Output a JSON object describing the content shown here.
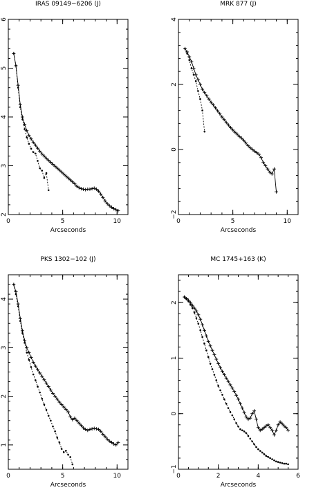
{
  "chart_data": [
    {
      "type": "line",
      "title": "IRAS 09149−6206 (J)",
      "xlabel": "Arcseconds",
      "ylabel": "",
      "xlim": [
        0,
        11
      ],
      "ylim": [
        2,
        6
      ],
      "xticks": [
        "0",
        "5",
        "10"
      ],
      "yticks": [
        "2",
        "3",
        "4",
        "5",
        "6"
      ],
      "series": [
        {
          "style": "solid-plus",
          "x": [
            0.5,
            0.7,
            0.9,
            1.1,
            1.3,
            1.5,
            1.7,
            1.9,
            2.1,
            2.3,
            2.5,
            2.7,
            2.9,
            3.1,
            3.3,
            3.5,
            3.7,
            3.9,
            4.1,
            4.3,
            4.5,
            4.7,
            4.9,
            5.1,
            5.3,
            5.5,
            5.7,
            5.9,
            6.1,
            6.3,
            6.5,
            6.7,
            6.9,
            7.1,
            7.3,
            7.5,
            7.7,
            7.9,
            8.1,
            8.3,
            8.5,
            8.7,
            8.9,
            9.1,
            9.3,
            9.5,
            9.7,
            9.9,
            10.1
          ],
          "y": [
            5.3,
            5.05,
            4.65,
            4.25,
            4.0,
            3.85,
            3.72,
            3.62,
            3.55,
            3.48,
            3.42,
            3.36,
            3.3,
            3.24,
            3.2,
            3.15,
            3.11,
            3.07,
            3.03,
            2.99,
            2.95,
            2.91,
            2.87,
            2.83,
            2.79,
            2.75,
            2.71,
            2.67,
            2.63,
            2.58,
            2.55,
            2.53,
            2.52,
            2.51,
            2.52,
            2.52,
            2.53,
            2.54,
            2.52,
            2.48,
            2.42,
            2.35,
            2.28,
            2.22,
            2.18,
            2.15,
            2.12,
            2.1,
            2.08
          ]
        },
        {
          "style": "dashed-dot",
          "x": [
            0.5,
            0.7,
            0.9,
            1.1,
            1.3,
            1.5,
            1.7,
            1.9,
            2.1,
            2.3,
            2.5,
            2.7,
            2.9,
            3.1,
            3.3,
            3.5,
            3.7
          ],
          "y": [
            5.3,
            5.05,
            4.6,
            4.2,
            3.95,
            3.75,
            3.58,
            3.45,
            3.35,
            3.28,
            3.25,
            3.1,
            2.95,
            2.9,
            2.75,
            2.85,
            2.5
          ]
        }
      ]
    },
    {
      "type": "line",
      "title": "MRK 877 (J)",
      "xlabel": "Arcseconds",
      "ylabel": "",
      "xlim": [
        0,
        11
      ],
      "ylim": [
        -2,
        4
      ],
      "xticks": [
        "0",
        "5",
        "10"
      ],
      "yticks": [
        "−2",
        "0",
        "2",
        "4"
      ],
      "series": [
        {
          "style": "solid-plus",
          "x": [
            0.6,
            0.8,
            1.0,
            1.2,
            1.4,
            1.6,
            1.8,
            2.0,
            2.2,
            2.4,
            2.6,
            2.8,
            3.0,
            3.2,
            3.4,
            3.6,
            3.8,
            4.0,
            4.2,
            4.4,
            4.6,
            4.8,
            5.0,
            5.2,
            5.4,
            5.6,
            5.8,
            6.0,
            6.2,
            6.4,
            6.6,
            6.8,
            7.0,
            7.2,
            7.4,
            7.6,
            7.8,
            8.0,
            8.2,
            8.4,
            8.6,
            8.8,
            9.0
          ],
          "y": [
            3.1,
            3.0,
            2.85,
            2.7,
            2.5,
            2.3,
            2.15,
            2.0,
            1.85,
            1.75,
            1.65,
            1.55,
            1.45,
            1.37,
            1.28,
            1.19,
            1.1,
            1.0,
            0.92,
            0.83,
            0.75,
            0.67,
            0.6,
            0.53,
            0.47,
            0.4,
            0.35,
            0.28,
            0.2,
            0.12,
            0.05,
            0.0,
            -0.05,
            -0.1,
            -0.15,
            -0.25,
            -0.4,
            -0.5,
            -0.6,
            -0.7,
            -0.75,
            -0.6,
            -1.3
          ]
        },
        {
          "style": "dashed-dot",
          "x": [
            0.6,
            0.8,
            1.0,
            1.2,
            1.4,
            1.6,
            1.8,
            2.0,
            2.2,
            2.4
          ],
          "y": [
            3.1,
            2.95,
            2.75,
            2.5,
            2.3,
            2.1,
            1.8,
            1.55,
            1.2,
            0.55
          ]
        }
      ]
    },
    {
      "type": "line",
      "title": "PKS 1302−102 (J)",
      "xlabel": "Arcseconds",
      "ylabel": "",
      "xlim": [
        0,
        11
      ],
      "ylim": [
        0.5,
        4.5
      ],
      "xticks": [
        "0",
        "5",
        "10"
      ],
      "yticks": [
        "1",
        "2",
        "3",
        "4"
      ],
      "series": [
        {
          "style": "solid-plus",
          "x": [
            0.5,
            0.7,
            0.9,
            1.1,
            1.3,
            1.5,
            1.7,
            1.9,
            2.1,
            2.3,
            2.5,
            2.7,
            2.9,
            3.1,
            3.3,
            3.5,
            3.7,
            3.9,
            4.1,
            4.3,
            4.5,
            4.7,
            4.9,
            5.1,
            5.3,
            5.5,
            5.7,
            5.9,
            6.1,
            6.3,
            6.5,
            6.7,
            6.9,
            7.1,
            7.3,
            7.5,
            7.7,
            7.9,
            8.1,
            8.3,
            8.5,
            8.7,
            8.9,
            9.1,
            9.3,
            9.5,
            9.7,
            9.9,
            10.1
          ],
          "y": [
            4.3,
            4.15,
            3.9,
            3.6,
            3.35,
            3.15,
            3.0,
            2.9,
            2.8,
            2.7,
            2.62,
            2.55,
            2.48,
            2.41,
            2.34,
            2.27,
            2.2,
            2.13,
            2.06,
            2.0,
            1.94,
            1.88,
            1.83,
            1.78,
            1.73,
            1.68,
            1.58,
            1.52,
            1.55,
            1.5,
            1.45,
            1.4,
            1.35,
            1.32,
            1.3,
            1.32,
            1.33,
            1.34,
            1.33,
            1.32,
            1.28,
            1.22,
            1.17,
            1.12,
            1.08,
            1.05,
            1.02,
            1.0,
            1.05
          ]
        },
        {
          "style": "dashed-dot",
          "x": [
            0.5,
            0.7,
            0.9,
            1.1,
            1.3,
            1.5,
            1.7,
            1.9,
            2.1,
            2.3,
            2.5,
            2.7,
            2.9,
            3.1,
            3.3,
            3.5,
            3.7,
            3.9,
            4.1,
            4.3,
            4.5,
            4.7,
            4.9,
            5.1,
            5.3,
            5.5,
            5.7,
            5.9
          ],
          "y": [
            4.3,
            4.1,
            3.85,
            3.55,
            3.3,
            3.1,
            2.9,
            2.75,
            2.6,
            2.45,
            2.33,
            2.2,
            2.08,
            1.95,
            1.83,
            1.72,
            1.6,
            1.5,
            1.38,
            1.28,
            1.15,
            1.05,
            0.92,
            0.85,
            0.88,
            0.8,
            0.75,
            0.6
          ]
        }
      ]
    },
    {
      "type": "line",
      "title": "MC 1745+163 (K)",
      "xlabel": "Arcseconds",
      "ylabel": "",
      "xlim": [
        0,
        6
      ],
      "ylim": [
        -1,
        2.5
      ],
      "xticks": [
        "0",
        "2",
        "4",
        "6"
      ],
      "yticks": [
        "−1",
        "0",
        "1",
        "2"
      ],
      "series": [
        {
          "style": "solid-plus",
          "x": [
            0.3,
            0.4,
            0.5,
            0.6,
            0.7,
            0.8,
            0.9,
            1.0,
            1.1,
            1.2,
            1.3,
            1.4,
            1.5,
            1.6,
            1.7,
            1.8,
            1.9,
            2.0,
            2.1,
            2.2,
            2.3,
            2.4,
            2.5,
            2.6,
            2.7,
            2.8,
            2.9,
            3.0,
            3.1,
            3.2,
            3.3,
            3.4,
            3.5,
            3.6,
            3.7,
            3.8,
            3.9,
            4.0,
            4.1,
            4.2,
            4.3,
            4.4,
            4.5,
            4.6,
            4.7,
            4.8,
            4.9,
            5.0,
            5.1,
            5.2,
            5.3,
            5.4,
            5.5
          ],
          "y": [
            2.1,
            2.07,
            2.04,
            2.0,
            1.95,
            1.9,
            1.85,
            1.78,
            1.7,
            1.6,
            1.5,
            1.4,
            1.3,
            1.22,
            1.14,
            1.06,
            0.98,
            0.9,
            0.83,
            0.76,
            0.7,
            0.64,
            0.58,
            0.52,
            0.46,
            0.4,
            0.33,
            0.26,
            0.18,
            0.1,
            0.02,
            -0.06,
            -0.1,
            -0.08,
            0.0,
            0.05,
            -0.1,
            -0.25,
            -0.3,
            -0.28,
            -0.25,
            -0.22,
            -0.2,
            -0.25,
            -0.3,
            -0.38,
            -0.3,
            -0.2,
            -0.15,
            -0.18,
            -0.22,
            -0.25,
            -0.3
          ]
        },
        {
          "style": "dashed-dot",
          "x": [
            0.3,
            0.4,
            0.5,
            0.6,
            0.7,
            0.8,
            0.9,
            1.0,
            1.1,
            1.2,
            1.3,
            1.4,
            1.5,
            1.6,
            1.7,
            1.8,
            1.9,
            2.0,
            2.1,
            2.2,
            2.3,
            2.4,
            2.5,
            2.6,
            2.7,
            2.8,
            2.9,
            3.0,
            3.1,
            3.2,
            3.3,
            3.4,
            3.5,
            3.6,
            3.7,
            3.8,
            3.9,
            4.0,
            4.1,
            4.2,
            4.3,
            4.4,
            4.5,
            4.6,
            4.7,
            4.8,
            4.9,
            5.0,
            5.1,
            5.2,
            5.3,
            5.4,
            5.5
          ],
          "y": [
            2.1,
            2.06,
            2.02,
            1.96,
            1.9,
            1.82,
            1.72,
            1.62,
            1.5,
            1.38,
            1.26,
            1.14,
            1.02,
            0.9,
            0.8,
            0.7,
            0.6,
            0.5,
            0.42,
            0.34,
            0.26,
            0.18,
            0.1,
            0.03,
            -0.03,
            -0.1,
            -0.17,
            -0.23,
            -0.28,
            -0.3,
            -0.32,
            -0.35,
            -0.4,
            -0.45,
            -0.5,
            -0.55,
            -0.6,
            -0.64,
            -0.67,
            -0.7,
            -0.73,
            -0.76,
            -0.78,
            -0.8,
            -0.82,
            -0.84,
            -0.86,
            -0.87,
            -0.88,
            -0.89,
            -0.9,
            -0.9,
            -0.91
          ]
        }
      ]
    }
  ]
}
